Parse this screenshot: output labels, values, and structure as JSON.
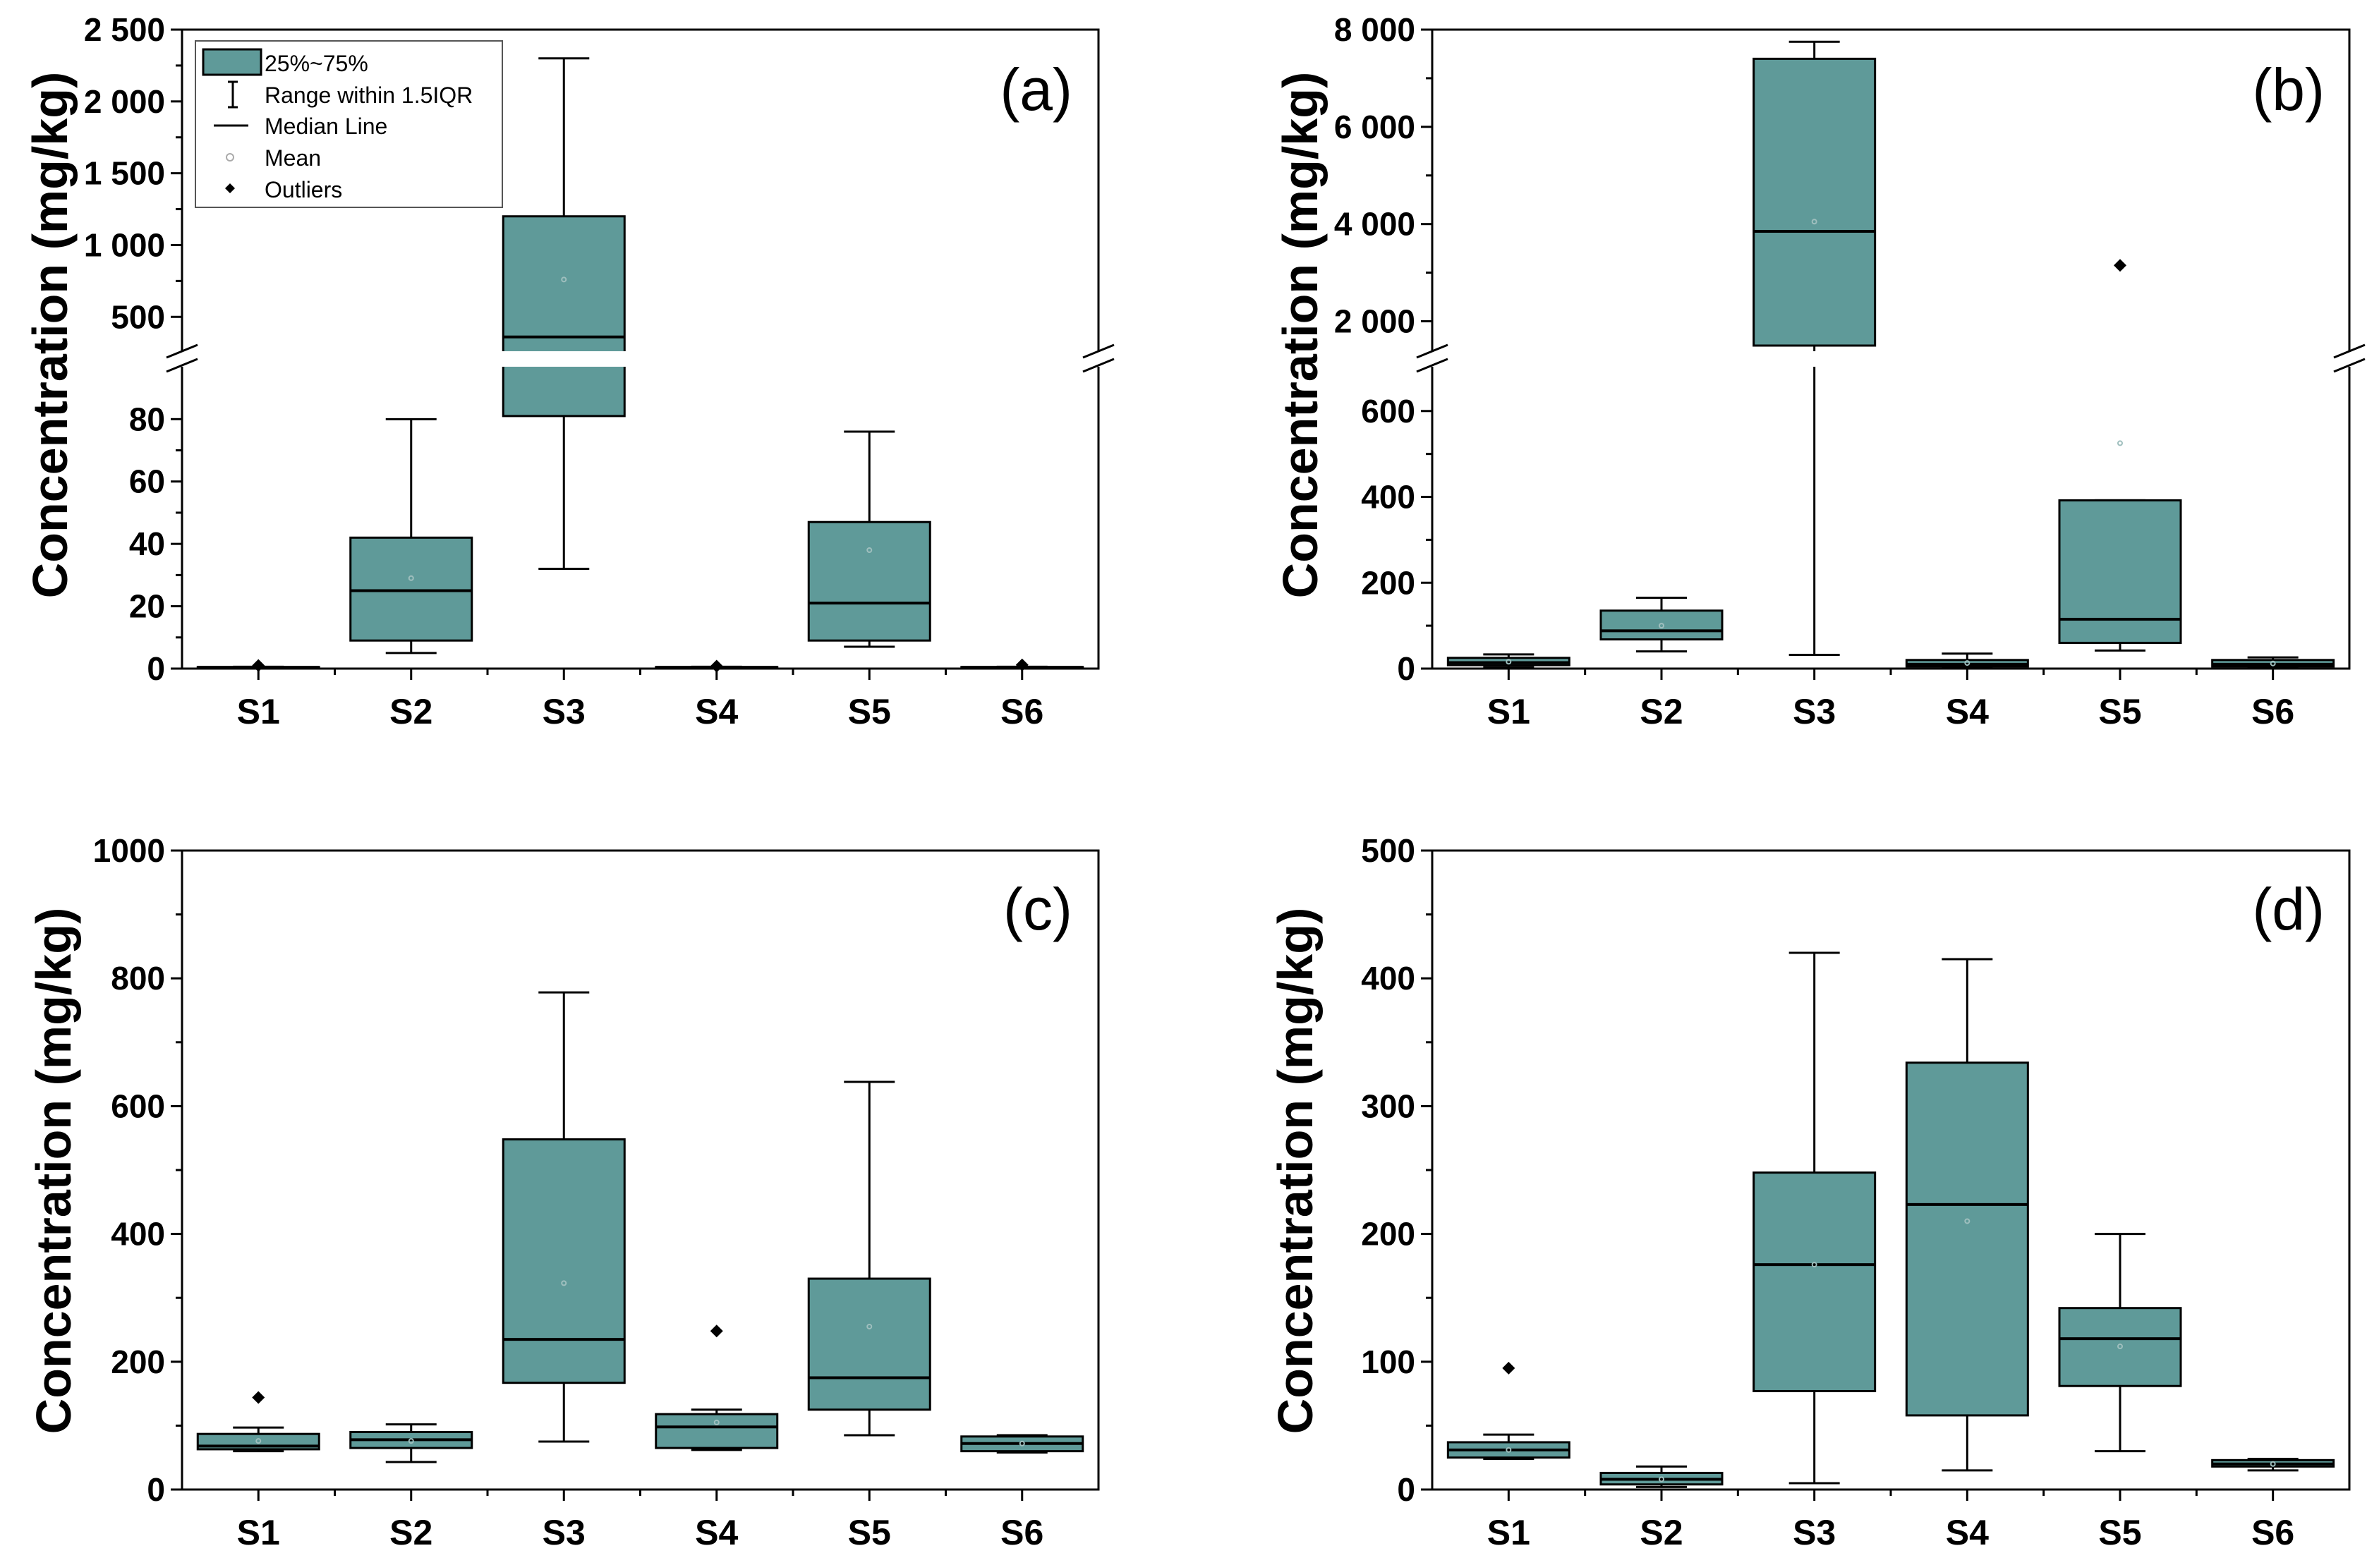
{
  "colors": {
    "box_fill": "#5f9a99",
    "axis": "#000000",
    "mean_marker": "#9fbfbe"
  },
  "legend": {
    "items": [
      {
        "key": "box",
        "label": "25%~75%"
      },
      {
        "key": "range",
        "label": "Range within 1.5IQR"
      },
      {
        "key": "median",
        "label": "Median Line"
      },
      {
        "key": "mean",
        "label": "Mean"
      },
      {
        "key": "outlier",
        "label": "Outliers"
      }
    ]
  },
  "chart_data": [
    {
      "panel": "(a)",
      "type": "box",
      "ylabel": "Concentration (mg/kg)",
      "categories": [
        "S1",
        "S2",
        "S3",
        "S4",
        "S5",
        "S6"
      ],
      "y_break": {
        "lower_range": [
          0,
          95
        ],
        "upper_range": [
          300,
          2500
        ]
      },
      "lower_ticks": [
        {
          "v": 0,
          "label": "0"
        },
        {
          "v": 20,
          "label": "20"
        },
        {
          "v": 40,
          "label": "40"
        },
        {
          "v": 60,
          "label": "60"
        },
        {
          "v": 80,
          "label": "80"
        }
      ],
      "upper_ticks": [
        {
          "v": 500,
          "label": "500"
        },
        {
          "v": 1000,
          "label": "1 000"
        },
        {
          "v": 1500,
          "label": "1 500"
        },
        {
          "v": 2000,
          "label": "2 000"
        },
        {
          "v": 2500,
          "label": "2 500"
        }
      ],
      "boxes": [
        {
          "cat": "S1",
          "min": 0.2,
          "q1": 0.3,
          "median": 0.4,
          "q3": 0.5,
          "max": 0.6,
          "mean": 0.4,
          "outliers": [
            1.0
          ]
        },
        {
          "cat": "S2",
          "min": 5,
          "q1": 9,
          "median": 25,
          "q3": 42,
          "max": 80,
          "mean": 29,
          "outliers": []
        },
        {
          "cat": "S3",
          "min": 32,
          "q1": 81,
          "median": 360,
          "q3": 1200,
          "max": 2300,
          "mean": 760,
          "outliers": []
        },
        {
          "cat": "S4",
          "min": 0.2,
          "q1": 0.3,
          "median": 0.4,
          "q3": 0.5,
          "max": 0.6,
          "mean": 0.4,
          "outliers": [
            0.8
          ]
        },
        {
          "cat": "S5",
          "min": 7,
          "q1": 9,
          "median": 21,
          "q3": 47,
          "max": 76,
          "mean": 38,
          "outliers": []
        },
        {
          "cat": "S6",
          "min": 0.2,
          "q1": 0.3,
          "median": 0.4,
          "q3": 0.5,
          "max": 0.6,
          "mean": 0.4,
          "outliers": [
            1.2
          ]
        }
      ]
    },
    {
      "panel": "(b)",
      "type": "box",
      "ylabel": "Concentration (mg/kg)",
      "categories": [
        "S1",
        "S2",
        "S3",
        "S4",
        "S5",
        "S6"
      ],
      "y_break": {
        "lower_range": [
          0,
          690
        ],
        "upper_range": [
          1500,
          8000
        ]
      },
      "lower_ticks": [
        {
          "v": 0,
          "label": "0"
        },
        {
          "v": 200,
          "label": "200"
        },
        {
          "v": 400,
          "label": "400"
        },
        {
          "v": 600,
          "label": "600"
        }
      ],
      "upper_ticks": [
        {
          "v": 2000,
          "label": "2 000"
        },
        {
          "v": 4000,
          "label": "4 000"
        },
        {
          "v": 6000,
          "label": "6 000"
        },
        {
          "v": 8000,
          "label": "8 000"
        }
      ],
      "boxes": [
        {
          "cat": "S1",
          "min": 3,
          "q1": 8,
          "median": 14,
          "q3": 25,
          "max": 33,
          "mean": 16,
          "outliers": []
        },
        {
          "cat": "S2",
          "min": 40,
          "q1": 68,
          "median": 88,
          "q3": 135,
          "max": 165,
          "mean": 100,
          "outliers": []
        },
        {
          "cat": "S3",
          "min": 32,
          "q1": 1500,
          "median": 3850,
          "q3": 7400,
          "max": 7750,
          "mean": 4050,
          "outliers": []
        },
        {
          "cat": "S4",
          "min": 2,
          "q1": 5,
          "median": 10,
          "q3": 20,
          "max": 35,
          "mean": 13,
          "outliers": []
        },
        {
          "cat": "S5",
          "min": 42,
          "q1": 60,
          "median": 115,
          "q3": 392,
          "max": 392,
          "mean": 525,
          "outliers": [
            3150
          ]
        },
        {
          "cat": "S6",
          "min": 2,
          "q1": 5,
          "median": 10,
          "q3": 20,
          "max": 26,
          "mean": 12,
          "outliers": []
        }
      ]
    },
    {
      "panel": "(c)",
      "type": "box",
      "ylabel": "Concentration (mg/kg)",
      "categories": [
        "S1",
        "S2",
        "S3",
        "S4",
        "S5",
        "S6"
      ],
      "ylim": [
        0,
        1000
      ],
      "ticks": [
        {
          "v": 0,
          "label": "0"
        },
        {
          "v": 200,
          "label": "200"
        },
        {
          "v": 400,
          "label": "400"
        },
        {
          "v": 600,
          "label": "600"
        },
        {
          "v": 800,
          "label": "800"
        },
        {
          "v": 1000,
          "label": "1000"
        }
      ],
      "boxes": [
        {
          "cat": "S1",
          "min": 60,
          "q1": 63,
          "median": 68,
          "q3": 87,
          "max": 97,
          "mean": 76,
          "outliers": [
            144
          ]
        },
        {
          "cat": "S2",
          "min": 43,
          "q1": 65,
          "median": 78,
          "q3": 90,
          "max": 102,
          "mean": 76,
          "outliers": []
        },
        {
          "cat": "S3",
          "min": 75,
          "q1": 167,
          "median": 235,
          "q3": 548,
          "max": 778,
          "mean": 323,
          "outliers": []
        },
        {
          "cat": "S4",
          "min": 62,
          "q1": 65,
          "median": 98,
          "q3": 118,
          "max": 125,
          "mean": 105,
          "outliers": [
            248
          ]
        },
        {
          "cat": "S5",
          "min": 85,
          "q1": 125,
          "median": 175,
          "q3": 330,
          "max": 638,
          "mean": 255,
          "outliers": []
        },
        {
          "cat": "S6",
          "min": 58,
          "q1": 60,
          "median": 72,
          "q3": 83,
          "max": 85,
          "mean": 72,
          "outliers": []
        }
      ]
    },
    {
      "panel": "(d)",
      "type": "box",
      "ylabel": "Concentration (mg/kg)",
      "categories": [
        "S1",
        "S2",
        "S3",
        "S4",
        "S5",
        "S6"
      ],
      "ylim": [
        0,
        500
      ],
      "ticks": [
        {
          "v": 0,
          "label": "0"
        },
        {
          "v": 100,
          "label": "100"
        },
        {
          "v": 200,
          "label": "200"
        },
        {
          "v": 300,
          "label": "300"
        },
        {
          "v": 400,
          "label": "400"
        },
        {
          "v": 500,
          "label": "500"
        }
      ],
      "boxes": [
        {
          "cat": "S1",
          "min": 24,
          "q1": 25,
          "median": 31,
          "q3": 37,
          "max": 43,
          "mean": 31,
          "outliers": [
            95
          ]
        },
        {
          "cat": "S2",
          "min": 2,
          "q1": 4,
          "median": 8,
          "q3": 13,
          "max": 18,
          "mean": 8,
          "outliers": []
        },
        {
          "cat": "S3",
          "min": 5,
          "q1": 77,
          "median": 176,
          "q3": 248,
          "max": 420,
          "mean": 176,
          "outliers": []
        },
        {
          "cat": "S4",
          "min": 15,
          "q1": 58,
          "median": 223,
          "q3": 334,
          "max": 415,
          "mean": 210,
          "outliers": []
        },
        {
          "cat": "S5",
          "min": 30,
          "q1": 81,
          "median": 118,
          "q3": 142,
          "max": 200,
          "mean": 112,
          "outliers": []
        },
        {
          "cat": "S6",
          "min": 15,
          "q1": 18,
          "median": 20,
          "q3": 23,
          "max": 24,
          "mean": 20,
          "outliers": []
        }
      ]
    }
  ]
}
